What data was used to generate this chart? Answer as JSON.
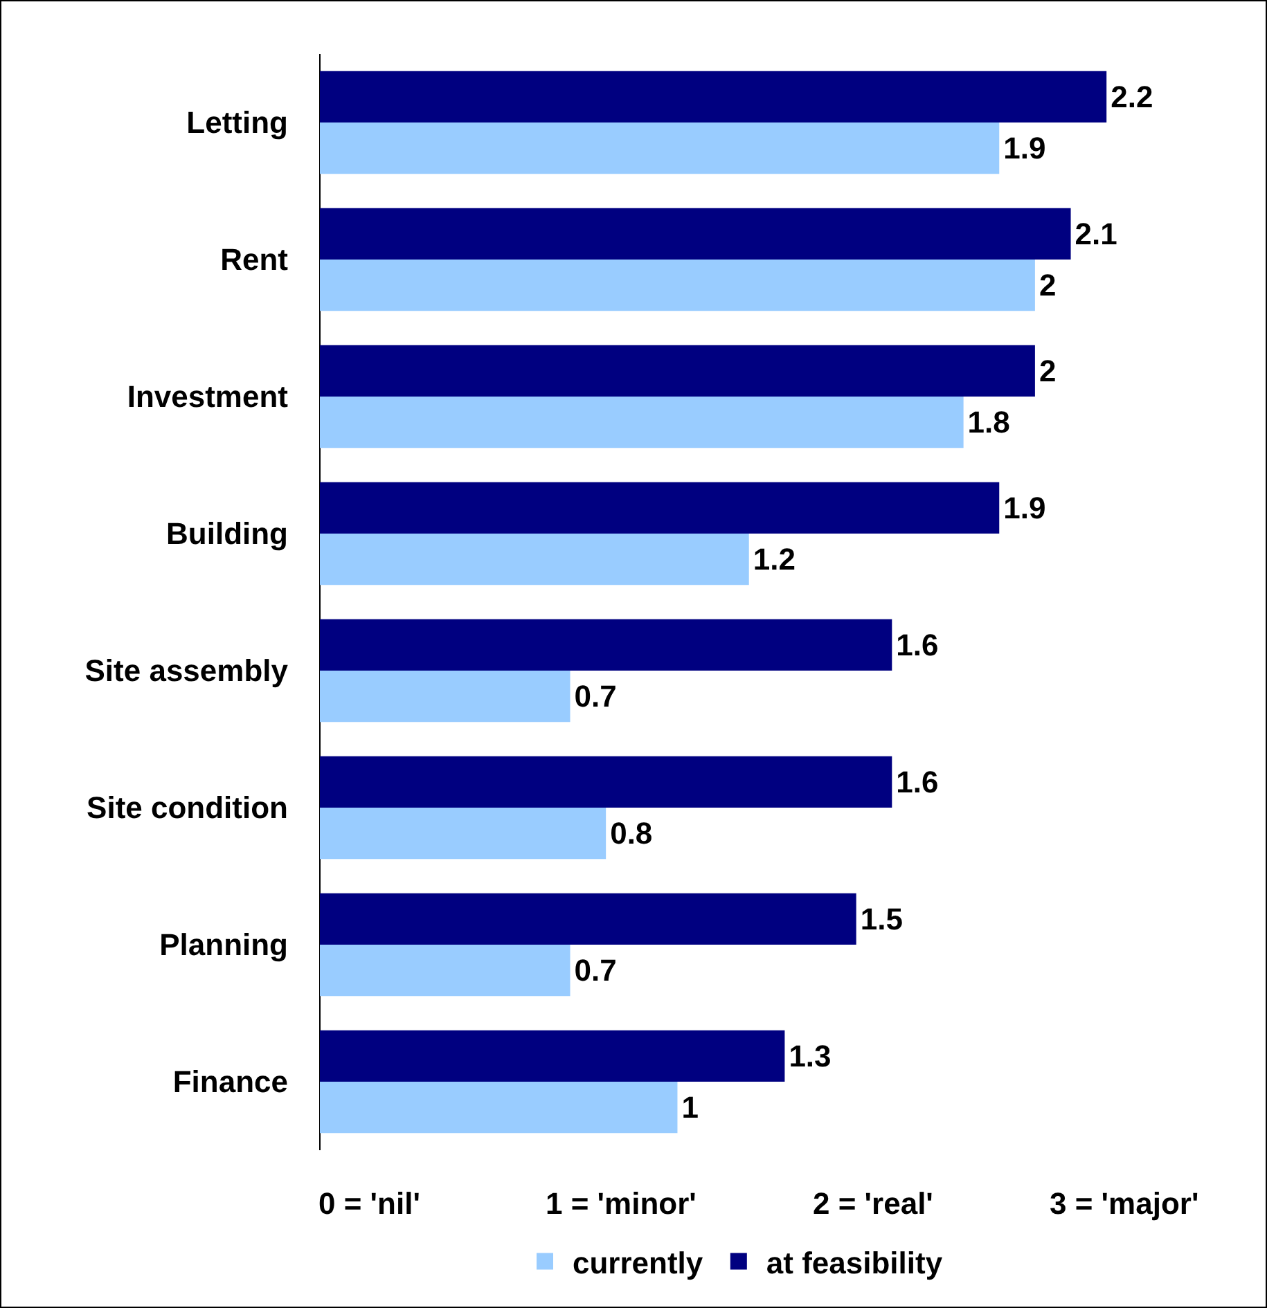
{
  "chart_data": {
    "type": "bar",
    "orientation": "horizontal",
    "categories": [
      "Letting",
      "Rent",
      "Investment",
      "Building",
      "Site assembly",
      "Site condition",
      "Planning",
      "Finance"
    ],
    "series": [
      {
        "name": "currently",
        "color": "#99ccff",
        "values": [
          1.9,
          2,
          1.8,
          1.2,
          0.7,
          0.8,
          0.7,
          1
        ]
      },
      {
        "name": "at feasibility",
        "color": "#000080",
        "values": [
          2.2,
          2.1,
          2,
          1.9,
          1.6,
          1.6,
          1.5,
          1.3
        ]
      }
    ],
    "data_labels": true,
    "grid": false,
    "legend": "bottom",
    "tick_labels": "y",
    "annotations": [
      "0 = 'nil'",
      "1 = 'minor'",
      "2 = 'real'",
      "3 = 'major'"
    ]
  }
}
